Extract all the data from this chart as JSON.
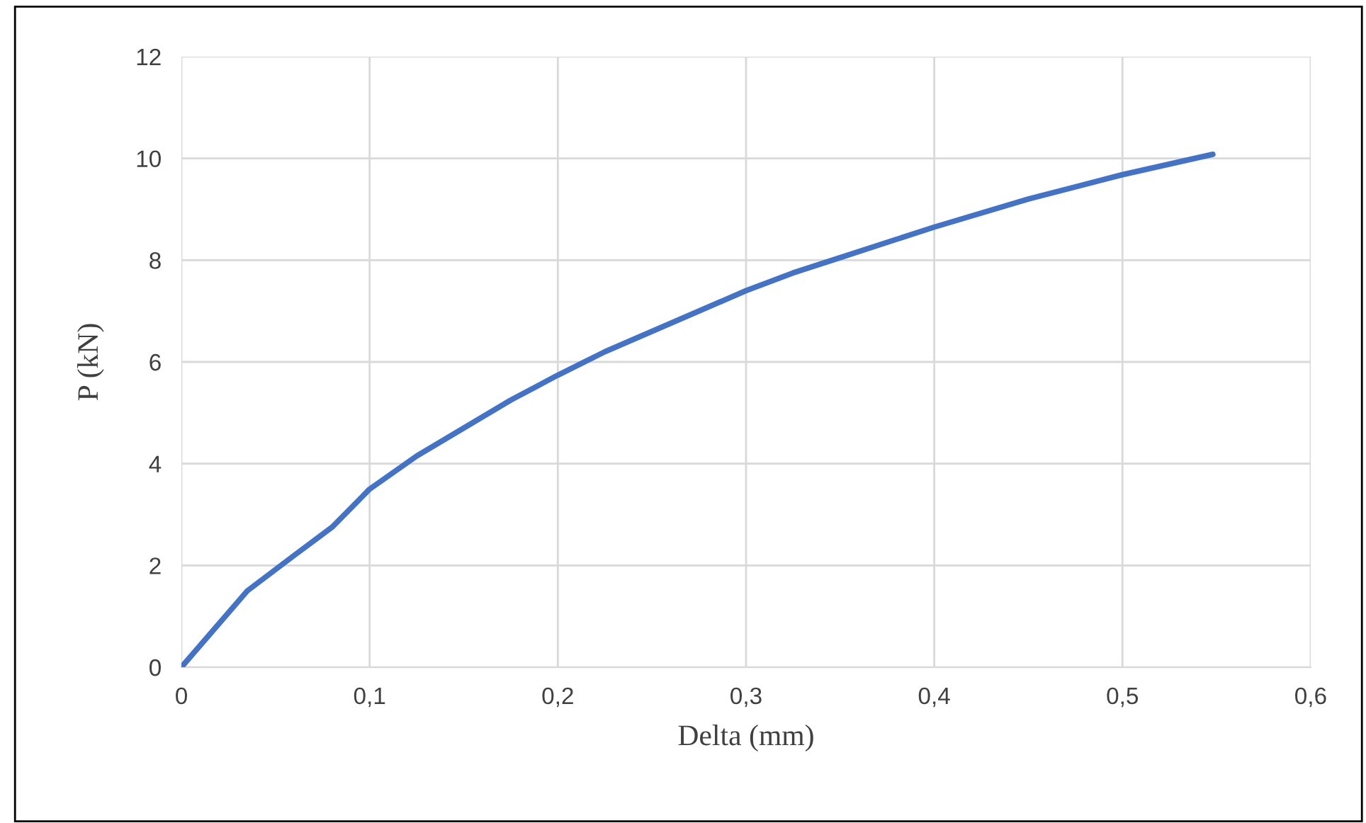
{
  "chart_data": {
    "type": "line",
    "xlabel": "Delta (mm)",
    "ylabel": "P (kN)",
    "x": [
      0,
      0.035,
      0.06,
      0.08,
      0.1,
      0.125,
      0.15,
      0.175,
      0.2,
      0.225,
      0.25,
      0.275,
      0.3,
      0.325,
      0.35,
      0.375,
      0.4,
      0.45,
      0.5,
      0.548
    ],
    "series": [
      {
        "color": "#4472c4",
        "values": [
          0,
          1.5,
          2.2,
          2.75,
          3.5,
          4.15,
          4.7,
          5.25,
          5.74,
          6.2,
          6.6,
          7.0,
          7.4,
          7.75,
          8.05,
          8.35,
          8.65,
          9.2,
          9.68,
          10.08
        ]
      }
    ],
    "xlim": [
      0,
      0.6
    ],
    "xticks": [
      {
        "value": 0,
        "label": "0"
      },
      {
        "value": 0.1,
        "label": "0,1"
      },
      {
        "value": 0.2,
        "label": "0,2"
      },
      {
        "value": 0.3,
        "label": "0,3"
      },
      {
        "value": 0.4,
        "label": "0,4"
      },
      {
        "value": 0.5,
        "label": "0,5"
      },
      {
        "value": 0.6,
        "label": "0,6"
      }
    ],
    "ylim": [
      0,
      12
    ],
    "yticks": [
      0,
      2,
      4,
      6,
      8,
      10,
      12
    ],
    "grid": true,
    "legend": false,
    "marker": "none",
    "line_style": "solid"
  }
}
